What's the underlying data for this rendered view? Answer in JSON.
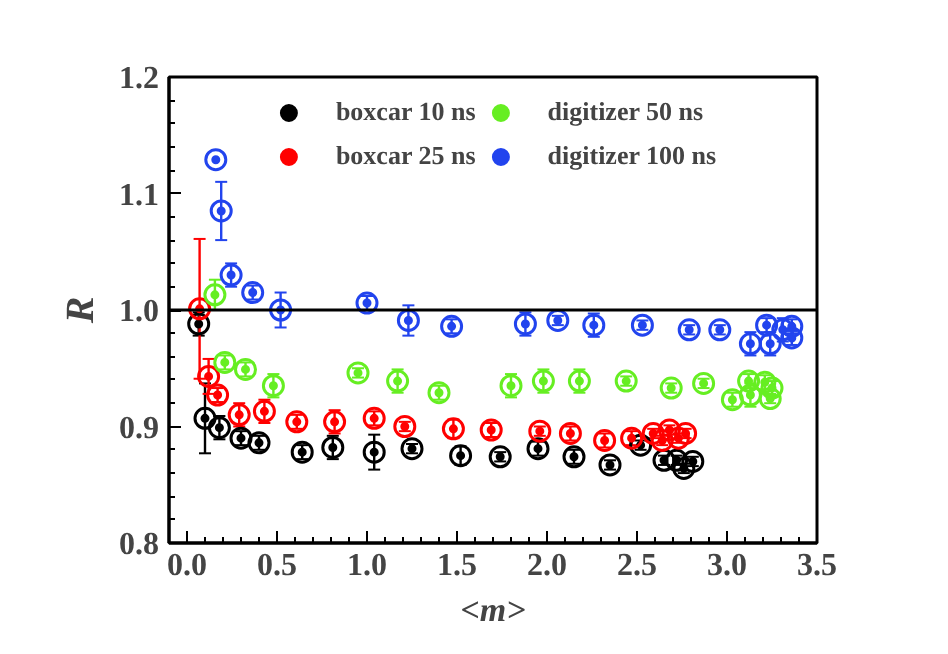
{
  "chart_data": {
    "type": "scatter",
    "xlabel": "<m>",
    "ylabel": "R",
    "marker": "circle",
    "legend": "top",
    "grid": false,
    "xlim": [
      -0.1,
      3.5
    ],
    "ylim": [
      0.8,
      1.2
    ],
    "xticks": [
      {
        "value": 0,
        "label": "0.0"
      },
      {
        "value": 0.5,
        "label": "0.5"
      },
      {
        "value": 1,
        "label": "1.0"
      },
      {
        "value": 1.5,
        "label": "1.5"
      },
      {
        "value": 2,
        "label": "2.0"
      },
      {
        "value": 2.5,
        "label": "2.5"
      },
      {
        "value": 3,
        "label": "3.0"
      },
      {
        "value": 3.5,
        "label": "3.5"
      }
    ],
    "yticks": [
      {
        "value": 0.8,
        "label": "0.8"
      },
      {
        "value": 0.9,
        "label": "0.9"
      },
      {
        "value": 1,
        "label": "1.0"
      },
      {
        "value": 1.1,
        "label": "1.1"
      },
      {
        "value": 1.2,
        "label": "1.2"
      }
    ],
    "ref_lines": [
      {
        "axis": "y",
        "value": 1.0,
        "color": "#000000"
      }
    ],
    "series": [
      {
        "name": "boxcar 10 ns",
        "color": "#000000",
        "x": [
          0.065,
          0.1,
          0.18,
          0.3,
          0.4,
          0.64,
          0.81,
          1.04,
          1.25,
          1.52,
          1.74,
          1.95,
          2.15,
          2.35,
          2.52,
          2.65,
          2.72,
          2.76,
          2.81
        ],
        "values": [
          0.988,
          0.907,
          0.899,
          0.89,
          0.886,
          0.878,
          0.882,
          0.878,
          0.881,
          0.875,
          0.874,
          0.881,
          0.874,
          0.867,
          0.884,
          0.871,
          0.871,
          0.864,
          0.87
        ],
        "errors": [
          0.01,
          0.03,
          0.01,
          0.006,
          0.006,
          0.006,
          0.01,
          0.015,
          0.004,
          0.008,
          0.004,
          0.006,
          0.006,
          0.004,
          0.004,
          0.004,
          0.004,
          0.004,
          0.004
        ]
      },
      {
        "name": "boxcar 25 ns",
        "color": "#ff0000",
        "x": [
          0.07,
          0.12,
          0.17,
          0.29,
          0.43,
          0.61,
          0.82,
          1.04,
          1.21,
          1.48,
          1.69,
          1.96,
          2.13,
          2.32,
          2.47,
          2.59,
          2.64,
          2.68,
          2.73,
          2.77
        ],
        "values": [
          1.001,
          0.943,
          0.927,
          0.91,
          0.913,
          0.904,
          0.904,
          0.907,
          0.9,
          0.898,
          0.897,
          0.896,
          0.894,
          0.888,
          0.89,
          0.894,
          0.888,
          0.897,
          0.89,
          0.894
        ],
        "errors": [
          0.06,
          0.015,
          0.006,
          0.01,
          0.01,
          0.006,
          0.01,
          0.006,
          0.004,
          0.008,
          0.006,
          0.004,
          0.006,
          0.006,
          0.006,
          0.004,
          0.004,
          0.004,
          0.004,
          0.004
        ]
      },
      {
        "name": "digitizer 50 ns",
        "color": "#66ee22",
        "x": [
          0.155,
          0.21,
          0.325,
          0.48,
          0.95,
          1.17,
          1.4,
          1.8,
          1.98,
          2.18,
          2.44,
          2.69,
          2.87,
          3.03,
          3.12,
          3.13,
          3.21,
          3.24,
          3.25
        ],
        "values": [
          1.013,
          0.955,
          0.949,
          0.935,
          0.946,
          0.939,
          0.929,
          0.935,
          0.939,
          0.939,
          0.939,
          0.933,
          0.937,
          0.923,
          0.939,
          0.927,
          0.938,
          0.924,
          0.933
        ],
        "errors": [
          0.013,
          0.006,
          0.006,
          0.01,
          0.004,
          0.01,
          0.006,
          0.01,
          0.01,
          0.01,
          0.004,
          0.004,
          0.004,
          0.006,
          0.006,
          0.01,
          0.006,
          0.004,
          0.006
        ]
      },
      {
        "name": "digitizer 100 ns",
        "color": "#2244ee",
        "x": [
          0.16,
          0.19,
          0.245,
          0.365,
          0.52,
          1.0,
          1.23,
          1.47,
          1.88,
          2.06,
          2.26,
          2.53,
          2.79,
          2.96,
          3.13,
          3.22,
          3.24,
          3.31,
          3.36,
          3.36
        ],
        "values": [
          1.129,
          1.085,
          1.03,
          1.015,
          1.0,
          1.006,
          0.991,
          0.986,
          0.988,
          0.991,
          0.987,
          0.987,
          0.983,
          0.983,
          0.971,
          0.987,
          0.971,
          0.983,
          0.986,
          0.976
        ],
        "errors": [
          null,
          0.025,
          0.01,
          0.006,
          0.015,
          0.006,
          0.013,
          0.006,
          0.01,
          0.004,
          0.01,
          0.004,
          0.004,
          0.004,
          0.01,
          0.006,
          0.01,
          0.01,
          0.006,
          0.006
        ]
      }
    ]
  }
}
